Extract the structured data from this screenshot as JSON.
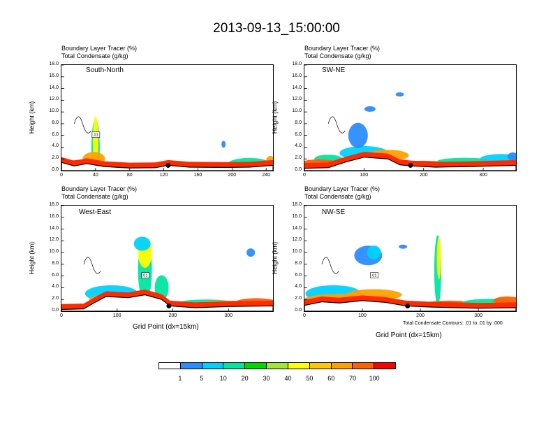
{
  "title": "2013-09-13_15:00:00",
  "panel_header": {
    "line1": "Boundary Layer Tracer   (%)",
    "line2": "Total Condensate   (g/kg)"
  },
  "ylabel": "Height (km)",
  "xlabel": "Grid Point (dx=15km)",
  "contour_note": "Total Condensate Contours: .01 to .01 by .000",
  "contour_label": ".01",
  "yticks": [
    "0.0",
    "2.0",
    "4.0",
    "6.0",
    "8.0",
    "10.0",
    "12.0",
    "14.0",
    "16.0",
    "18.0"
  ],
  "colorbar": {
    "labels": [
      "1",
      "5",
      "10",
      "20",
      "30",
      "40",
      "50",
      "60",
      "70",
      "100"
    ],
    "colors": [
      "#ffffff",
      "#2a8cff",
      "#00d2ff",
      "#00e6a0",
      "#00d800",
      "#a0e632",
      "#ffff00",
      "#ffc800",
      "#ffa000",
      "#ff6000",
      "#ff0000"
    ]
  },
  "chart_data": [
    {
      "type": "heatmap",
      "panel_label": "South-North",
      "xticks": [
        "0",
        "40",
        "80",
        "120",
        "160",
        "200",
        "240"
      ],
      "xlim": [
        0,
        248
      ],
      "ylim": [
        0,
        18
      ],
      "terrain_x": [
        0,
        15,
        30,
        50,
        80,
        110,
        125,
        150,
        190,
        220,
        248
      ],
      "terrain_y": [
        1.4,
        0.8,
        1.2,
        0.7,
        0.45,
        0.5,
        0.9,
        0.6,
        0.55,
        0.6,
        0.9
      ],
      "marker_x": 125
    },
    {
      "type": "heatmap",
      "panel_label": "SW-NE",
      "xticks": [
        "0",
        "100",
        "200",
        "300"
      ],
      "xlim": [
        0,
        355
      ],
      "ylim": [
        0,
        18
      ],
      "terrain_x": [
        0,
        40,
        70,
        100,
        140,
        160,
        180,
        220,
        280,
        355
      ],
      "terrain_y": [
        0.4,
        0.5,
        1.5,
        2.3,
        2.0,
        1.0,
        0.8,
        0.6,
        0.7,
        0.9
      ],
      "marker_x": 178
    },
    {
      "type": "heatmap",
      "panel_label": "West-East",
      "xticks": [
        "0",
        "100",
        "200",
        "300"
      ],
      "xlim": [
        0,
        380
      ],
      "ylim": [
        0,
        18
      ],
      "terrain_x": [
        0,
        40,
        60,
        80,
        120,
        150,
        180,
        195,
        240,
        300,
        380
      ],
      "terrain_y": [
        0.3,
        0.4,
        1.5,
        2.5,
        2.3,
        2.8,
        2.0,
        0.9,
        0.6,
        0.8,
        0.9
      ],
      "marker_x": 193
    },
    {
      "type": "heatmap",
      "panel_label": "NW-SE",
      "xticks": [
        "0",
        "100",
        "200",
        "300"
      ],
      "xlim": [
        0,
        365
      ],
      "ylim": [
        0,
        18
      ],
      "terrain_x": [
        0,
        30,
        60,
        100,
        140,
        175,
        220,
        260,
        300,
        365
      ],
      "terrain_y": [
        1.0,
        1.6,
        1.4,
        1.8,
        1.5,
        0.9,
        0.7,
        0.6,
        0.5,
        0.6
      ],
      "marker_x": 178
    }
  ]
}
